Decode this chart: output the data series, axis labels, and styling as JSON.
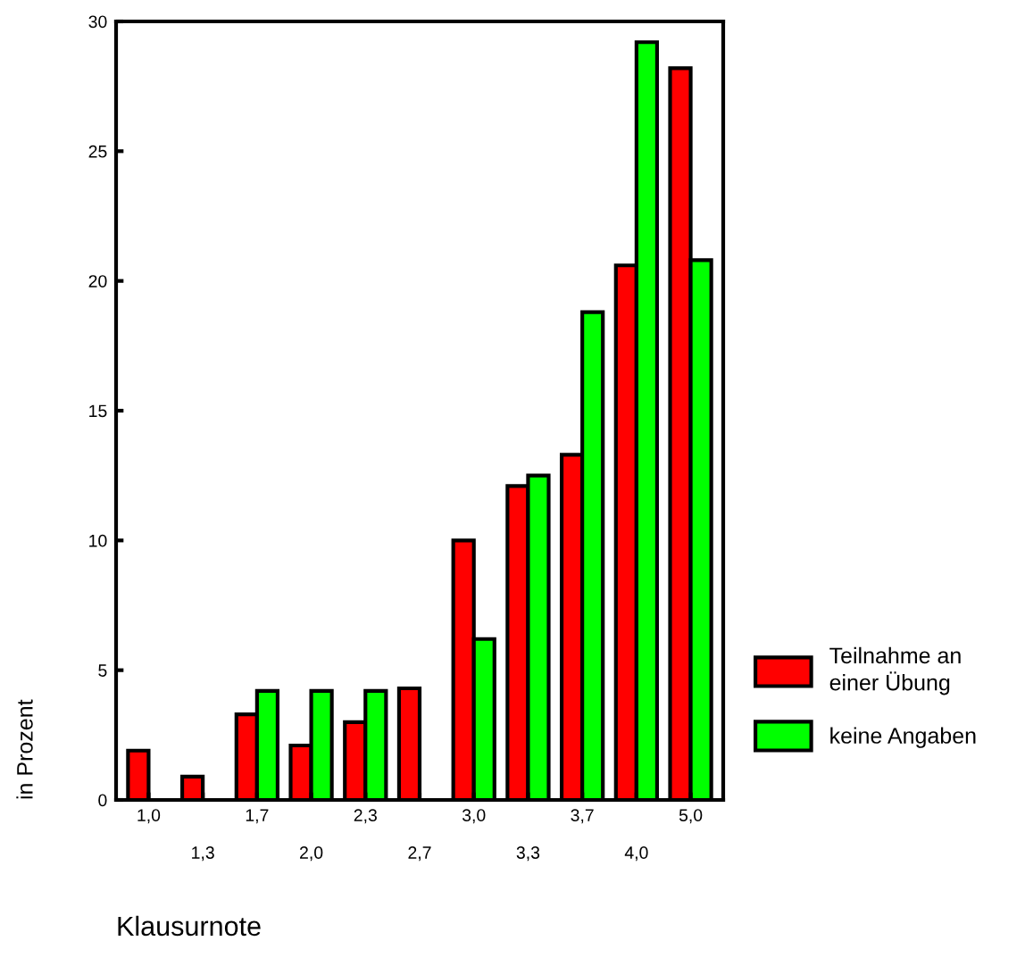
{
  "chart_data": {
    "type": "bar",
    "xlabel": "Klausurnote",
    "ylabel": "in Prozent",
    "categories": [
      "1,0",
      "1,3",
      "1,7",
      "2,0",
      "2,3",
      "2,7",
      "3,0",
      "3,3",
      "3,7",
      "4,0",
      "5,0"
    ],
    "series": [
      {
        "name": "Teilnahme an\neiner Übung",
        "color": "#ff0000",
        "values": [
          1.9,
          0.9,
          3.3,
          2.1,
          3.0,
          4.3,
          10.0,
          12.1,
          13.3,
          20.6,
          28.2
        ]
      },
      {
        "name": "keine Angaben",
        "color": "#00ff00",
        "values": [
          null,
          null,
          4.2,
          4.2,
          4.2,
          null,
          6.2,
          12.5,
          18.8,
          29.2,
          20.8
        ]
      }
    ],
    "ylim": [
      0,
      30
    ],
    "yticks": [
      0,
      5,
      10,
      15,
      20,
      25,
      30
    ],
    "grid": false,
    "legend": "right"
  }
}
